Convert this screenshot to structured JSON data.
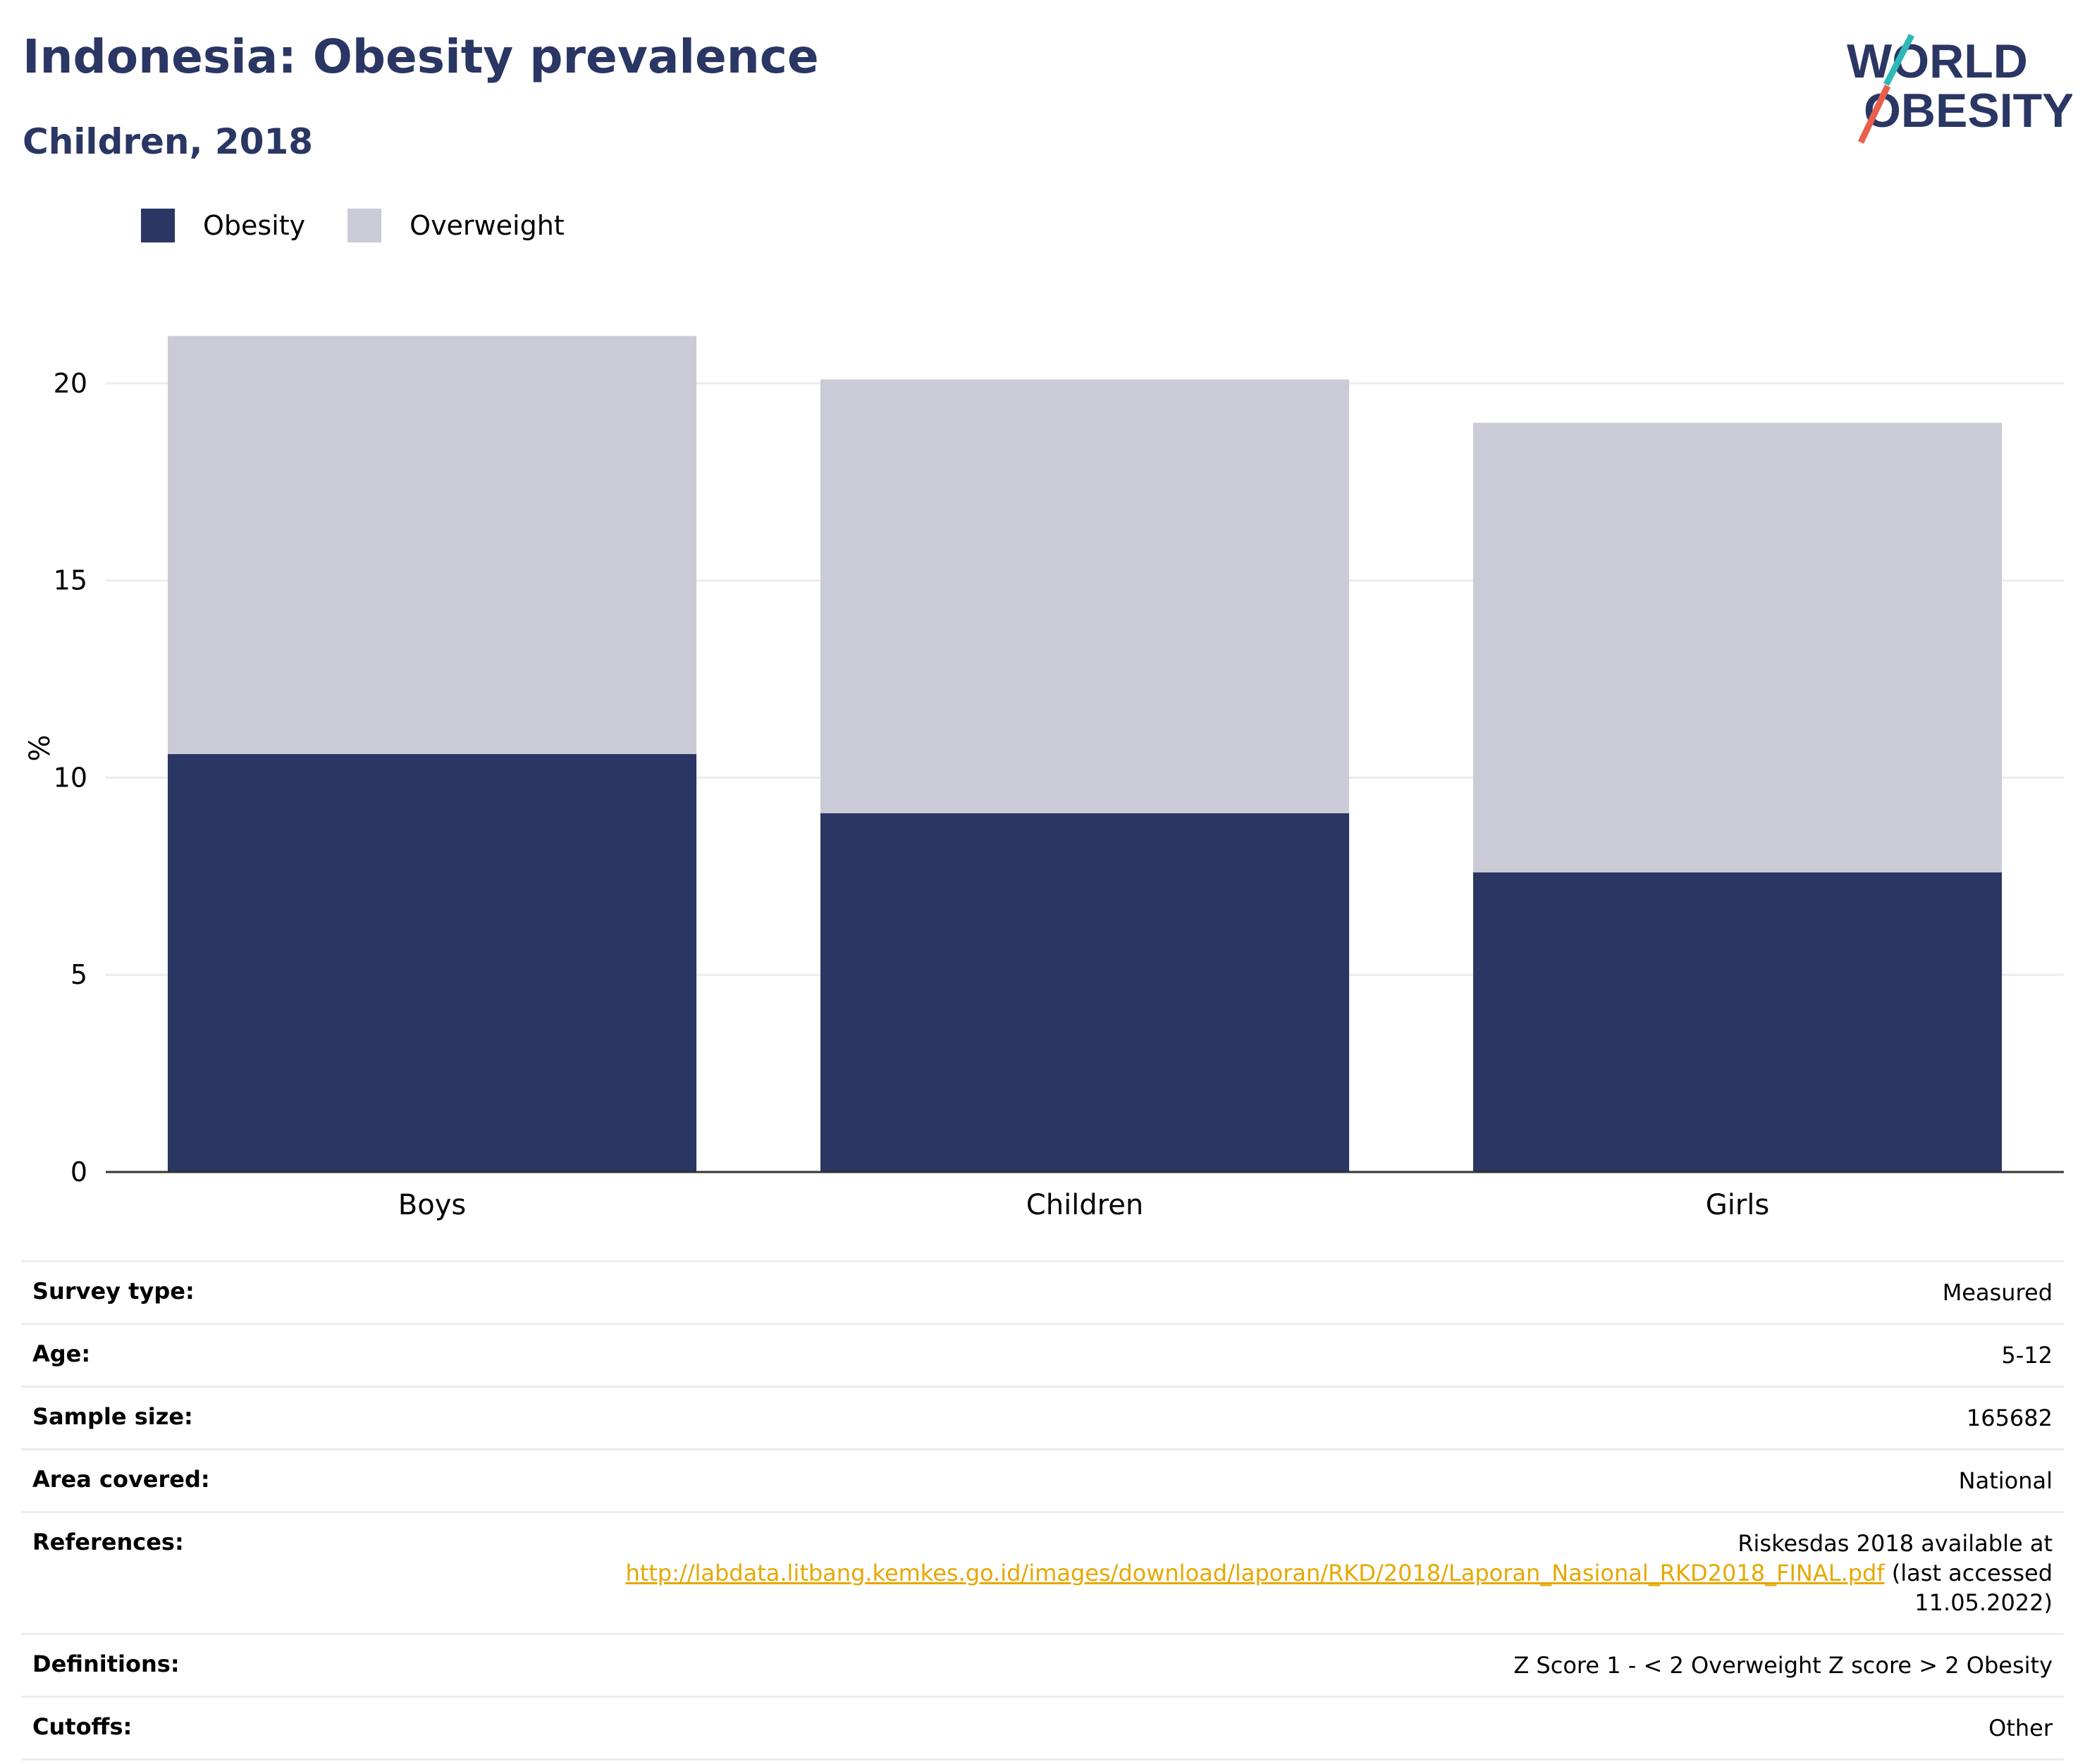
{
  "header": {
    "title": "Indonesia: Obesity prevalence",
    "subtitle": "Children, 2018",
    "logo_line1": "WORLD",
    "logo_line2": "OBESITY"
  },
  "legend": [
    {
      "label": "Obesity",
      "color": "#2a3663"
    },
    {
      "label": "Overweight",
      "color": "#cacbd6"
    }
  ],
  "chart_data": {
    "type": "bar",
    "stacked": true,
    "categories": [
      "Boys",
      "Children",
      "Girls"
    ],
    "series": [
      {
        "name": "Obesity",
        "color": "#2a3663",
        "values": [
          10.6,
          9.1,
          7.6
        ]
      },
      {
        "name": "Overweight",
        "color": "#cacbd6",
        "values": [
          10.6,
          11.0,
          11.4
        ]
      }
    ],
    "ylabel": "%",
    "ylim": [
      0,
      21.5
    ],
    "yticks": [
      0,
      5,
      10,
      15,
      20
    ],
    "grid": true,
    "legend_position": "top-left"
  },
  "info": [
    {
      "label": "Survey type:",
      "value": "Measured"
    },
    {
      "label": "Age:",
      "value": "5-12"
    },
    {
      "label": "Sample size:",
      "value": "165682"
    },
    {
      "label": "Area covered:",
      "value": "National"
    },
    {
      "label": "References:",
      "value_before": "Riskesdas 2018 available at ",
      "link": "http://labdata.litbang.kemkes.go.id/images/download/laporan/RKD/2018/Laporan_Nasional_RKD2018_FINAL.pdf",
      "value_after": " (last accessed 11.05.2022)"
    },
    {
      "label": "Definitions:",
      "value": "Z Score 1 - < 2 Overweight Z score > 2 Obesity"
    },
    {
      "label": "Cutoffs:",
      "value": "Other"
    }
  ]
}
